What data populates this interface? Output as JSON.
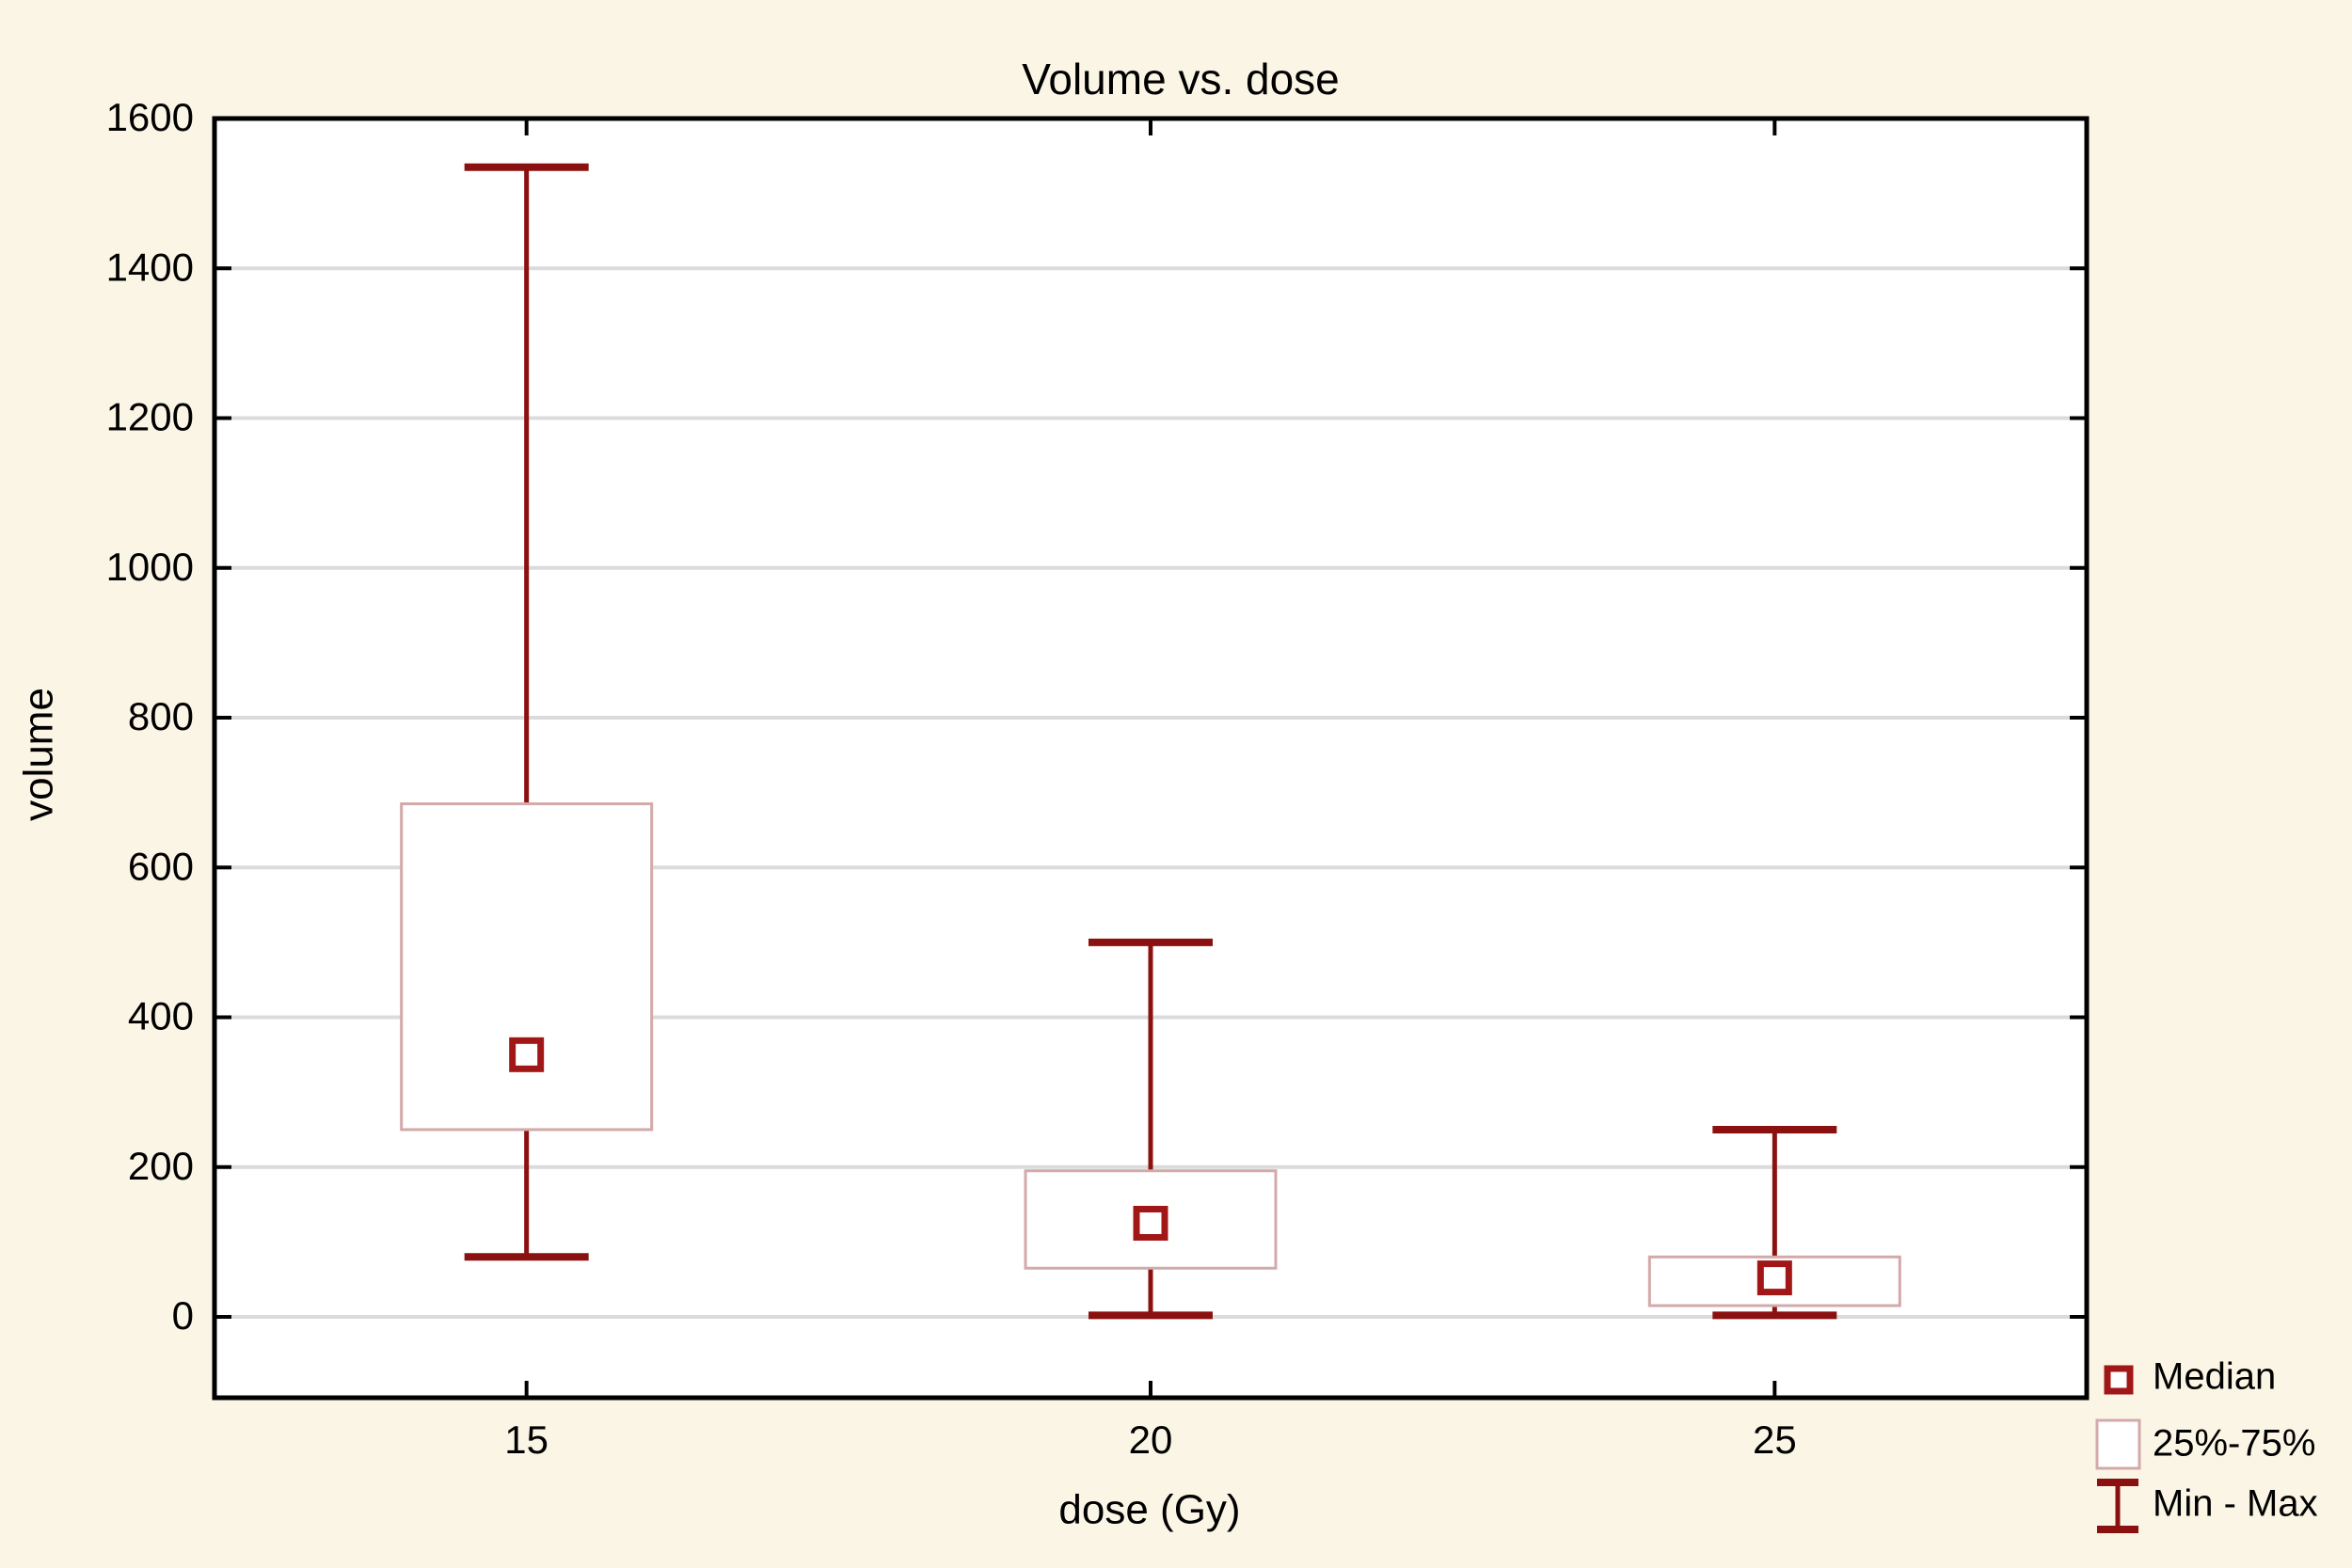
{
  "title": "Volume vs. dose",
  "colors": {
    "background": "#FBF5E6",
    "plot_background": "#FFFFFF",
    "maroon": "#8B1010",
    "median_red": "#A11717",
    "box_pink": "#D3A9A9",
    "grid": "#DBDBDB",
    "plot_border": "#000000",
    "text": "#000000"
  },
  "chart_data": {
    "type": "box",
    "title": "Volume vs. dose",
    "xlabel": "dose (Gy)",
    "ylabel": "volume",
    "categories": [
      "15",
      "20",
      "25"
    ],
    "series": [
      {
        "category": "15",
        "min": 80,
        "q1": 250,
        "median": 350,
        "q3": 685,
        "max": 1535
      },
      {
        "category": "20",
        "min": 2,
        "q1": 65,
        "median": 125,
        "q3": 195,
        "max": 500
      },
      {
        "category": "25",
        "min": 2,
        "q1": 15,
        "median": 52,
        "q3": 80,
        "max": 250
      }
    ],
    "y_ticks": [
      0,
      200,
      400,
      600,
      800,
      1000,
      1200,
      1400,
      1600
    ],
    "ylim": [
      -108,
      1600
    ],
    "grid": "horizontal",
    "legend_position": "bottom-right",
    "legend": [
      {
        "symbol": "median-square",
        "label": "Median"
      },
      {
        "symbol": "box",
        "label": "25%-75%"
      },
      {
        "symbol": "min-max-whisker",
        "label": "Min - Max"
      }
    ]
  }
}
